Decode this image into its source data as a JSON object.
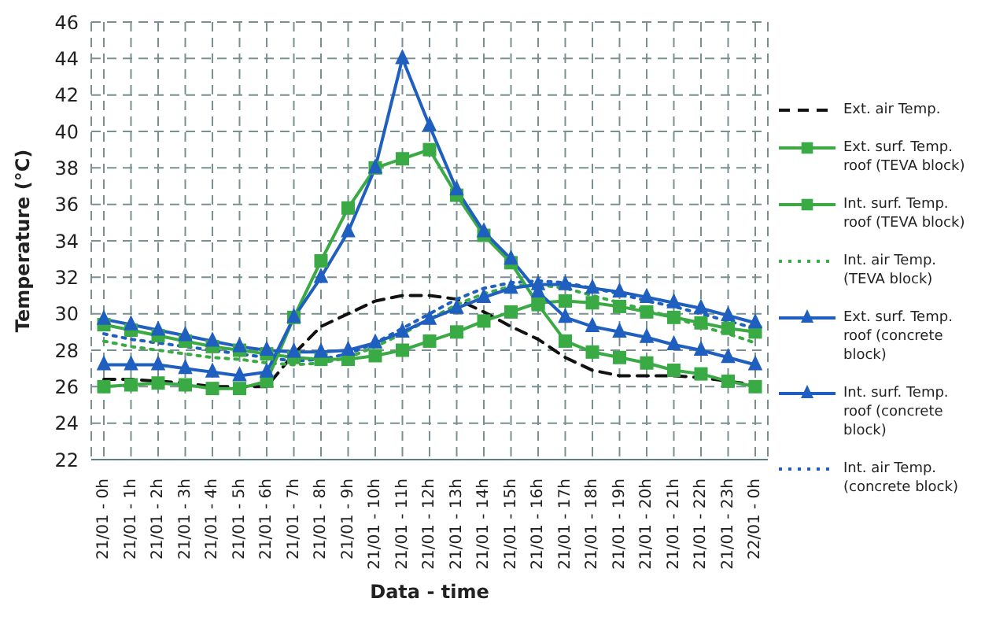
{
  "chart_data": {
    "type": "line",
    "xlabel": "Data - time",
    "ylabel": "Temperature (°C)",
    "categories": [
      "21/01 - 0h",
      "21/01 - 1h",
      "21/01 - 2h",
      "21/01 - 3h",
      "21/01 - 4h",
      "21/01 - 5h",
      "21/01 - 6h",
      "21/01 - 7h",
      "21/01 - 8h",
      "21/01 - 9h",
      "21/01 - 10h",
      "21/01 - 11h",
      "21/01 - 12h",
      "21/01 - 13h",
      "21/01 - 14h",
      "21/01 - 15h",
      "21/01 - 16h",
      "21/01 - 17h",
      "21/01 - 18h",
      "21/01 - 19h",
      "21/01 - 20h",
      "21/01 - 21h",
      "21/01 - 22h",
      "21/01 - 23h",
      "22/01 - 0h"
    ],
    "ylim": [
      22,
      46
    ],
    "yticks": [
      22,
      24,
      26,
      28,
      30,
      32,
      34,
      36,
      38,
      40,
      42,
      44,
      46
    ],
    "grid": true,
    "legend": "right",
    "series": [
      {
        "name": "Ext. air Temp.",
        "color": "#111111",
        "line_style": "dashed",
        "marker": "none",
        "values": [
          26.4,
          26.4,
          26.3,
          26.2,
          26.0,
          26.0,
          26.0,
          27.8,
          29.3,
          30.0,
          30.7,
          31.0,
          31.0,
          30.8,
          30.1,
          29.3,
          28.6,
          27.6,
          26.9,
          26.6,
          26.6,
          26.6,
          26.5,
          26.3,
          26.1
        ]
      },
      {
        "name": "Ext. surf. Temp. roof (TEVA block)",
        "color": "#3aaa45",
        "line_style": "solid",
        "marker": "square",
        "values": [
          26.0,
          26.1,
          26.2,
          26.1,
          25.9,
          25.9,
          26.3,
          29.8,
          32.9,
          35.8,
          38.0,
          38.5,
          39.0,
          36.5,
          34.3,
          32.8,
          30.5,
          28.5,
          27.9,
          27.6,
          27.3,
          26.9,
          26.7,
          26.3,
          26.0
        ]
      },
      {
        "name": "Int. surf. Temp. roof (TEVA block)",
        "color": "#3aaa45",
        "line_style": "solid",
        "marker": "square",
        "values": [
          29.4,
          29.1,
          28.8,
          28.5,
          28.2,
          28.0,
          27.8,
          27.6,
          27.5,
          27.5,
          27.7,
          28.0,
          28.5,
          29.0,
          29.6,
          30.1,
          30.6,
          30.7,
          30.6,
          30.4,
          30.1,
          29.8,
          29.5,
          29.2,
          29.0
        ]
      },
      {
        "name": "Int. air Temp. (TEVA block)",
        "color": "#3aaa45",
        "line_style": "dotted",
        "marker": "none",
        "values": [
          28.5,
          28.2,
          28.0,
          27.8,
          27.6,
          27.5,
          27.3,
          27.2,
          27.3,
          27.6,
          28.2,
          28.9,
          29.7,
          30.5,
          31.1,
          31.5,
          31.6,
          31.4,
          31.0,
          30.6,
          30.2,
          29.8,
          29.3,
          28.9,
          28.4
        ]
      },
      {
        "name": "Ext. surf. Temp. roof (concrete block)",
        "color": "#1f5fbf",
        "line_style": "solid",
        "marker": "triangle",
        "values": [
          27.2,
          27.2,
          27.2,
          27.0,
          26.8,
          26.6,
          26.8,
          29.8,
          32.0,
          34.5,
          38.0,
          44.0,
          40.3,
          36.8,
          34.5,
          33.0,
          31.2,
          29.8,
          29.3,
          29.0,
          28.7,
          28.3,
          28.0,
          27.6,
          27.2
        ]
      },
      {
        "name": "Int. surf. Temp. roof (concrete block)",
        "color": "#1f5fbf",
        "line_style": "solid",
        "marker": "triangle",
        "values": [
          29.7,
          29.4,
          29.1,
          28.8,
          28.5,
          28.2,
          28.0,
          27.9,
          27.9,
          28.0,
          28.4,
          29.0,
          29.7,
          30.3,
          30.9,
          31.4,
          31.6,
          31.6,
          31.4,
          31.2,
          30.9,
          30.6,
          30.3,
          29.9,
          29.5
        ]
      },
      {
        "name": "Int. air Temp. (concrete block)",
        "color": "#1f5fbf",
        "line_style": "dotted",
        "marker": "none",
        "values": [
          28.9,
          28.6,
          28.4,
          28.2,
          28.0,
          27.8,
          27.6,
          27.4,
          27.5,
          27.8,
          28.4,
          29.2,
          30.0,
          30.8,
          31.4,
          31.7,
          31.8,
          31.7,
          31.4,
          31.1,
          30.7,
          30.4,
          30.0,
          29.6,
          29.2
        ]
      }
    ]
  }
}
